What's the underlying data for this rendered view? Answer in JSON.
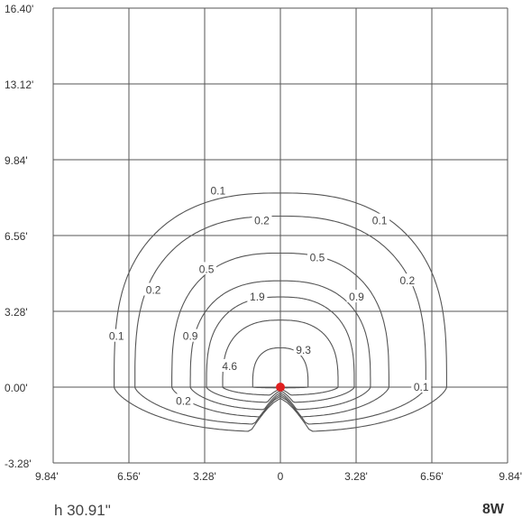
{
  "chart_data": {
    "type": "contour",
    "title": "",
    "xlabel": "",
    "ylabel": "",
    "x_ticks": [
      "9.84'",
      "6.56'",
      "3.28'",
      "0",
      "3.28'",
      "6.56'",
      "9.84'"
    ],
    "y_ticks": [
      "16.40'",
      "13.12'",
      "9.84'",
      "6.56'",
      "3.28'",
      "0.00'",
      "-3.28'"
    ],
    "xlim": [
      -9.84,
      9.84
    ],
    "ylim": [
      -3.28,
      16.4
    ],
    "grid": true,
    "source": {
      "x": 0,
      "y": 0,
      "color": "#e02020"
    },
    "contour_levels": [
      "0.1",
      "0.2",
      "0.5",
      "0.9",
      "1.9",
      "4.6",
      "9.3"
    ],
    "contours": [
      {
        "level": "0.1",
        "half_width": 7.2,
        "top": 8.4,
        "label_positions": [
          [
            -2.7,
            8.5
          ],
          [
            4.3,
            7.2
          ],
          [
            -7.1,
            2.2
          ],
          [
            6.1,
            0.0
          ]
        ]
      },
      {
        "level": "0.2",
        "half_width": 6.3,
        "top": 7.4,
        "label_positions": [
          [
            -0.8,
            7.2
          ],
          [
            -5.5,
            4.2
          ],
          [
            5.5,
            4.6
          ],
          [
            -4.2,
            -0.6
          ]
        ]
      },
      {
        "level": "0.5",
        "half_width": 4.7,
        "top": 5.8,
        "label_positions": [
          [
            -3.2,
            5.1
          ],
          [
            1.6,
            5.6
          ]
        ]
      },
      {
        "level": "0.9",
        "half_width": 3.9,
        "top": 4.6,
        "label_positions": [
          [
            -3.9,
            2.2
          ],
          [
            3.3,
            3.9
          ]
        ]
      },
      {
        "level": "1.9",
        "half_width": 3.2,
        "top": 3.9,
        "label_positions": [
          [
            -1.0,
            3.9
          ]
        ]
      },
      {
        "level": "4.6",
        "half_width": 2.5,
        "top": 2.9,
        "label_positions": [
          [
            -2.2,
            0.9
          ]
        ]
      },
      {
        "level": "9.3",
        "half_width": 1.2,
        "top": 1.7,
        "label_positions": [
          [
            1.0,
            1.6
          ]
        ]
      }
    ]
  },
  "footer": {
    "mounting_height": "h 30.91\"",
    "wattage": "8W"
  }
}
